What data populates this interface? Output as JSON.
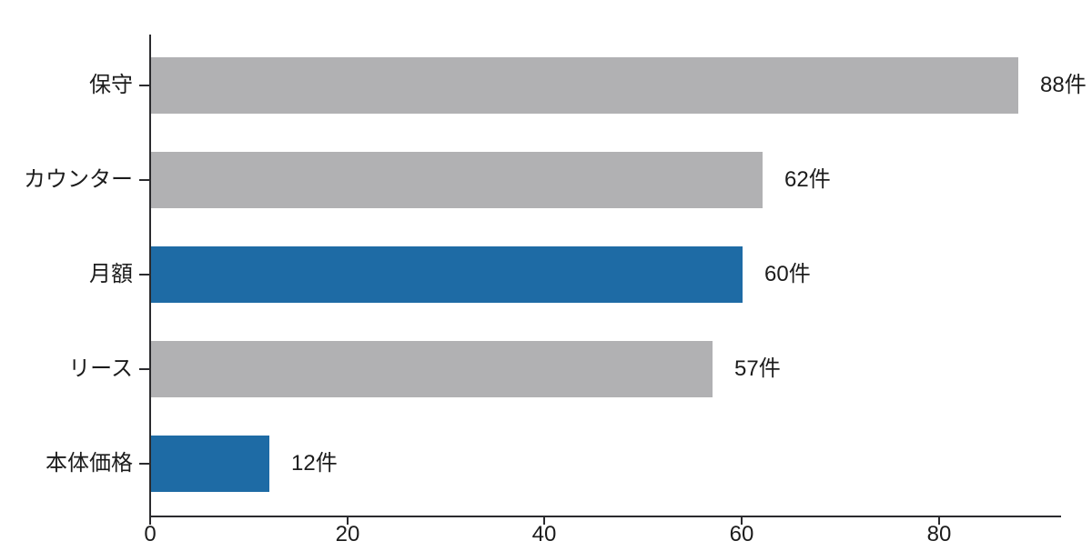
{
  "chart_data": {
    "type": "bar",
    "orientation": "horizontal",
    "title": "",
    "xlabel": "",
    "ylabel": "",
    "categories": [
      "保守",
      "カウンター",
      "月額",
      "リース",
      "本体価格"
    ],
    "values": [
      88,
      62,
      60,
      57,
      12
    ],
    "value_labels": [
      "88件",
      "62件",
      "60件",
      "57件",
      "12件"
    ],
    "unit_suffix": "件",
    "bar_colors": [
      "#b1b1b3",
      "#b1b1b3",
      "#1e6ba5",
      "#b1b1b3",
      "#1e6ba5"
    ],
    "xlim": [
      0,
      92.5
    ],
    "xticks": [
      0,
      20,
      40,
      60,
      80
    ],
    "xtick_labels": [
      "0",
      "20",
      "40",
      "60",
      "80"
    ],
    "grid": false,
    "legend": null
  },
  "colors": {
    "bar_blue": "#1e6ba5",
    "bar_gray": "#b1b1b3",
    "axis": "#2b2b2e",
    "text": "#1c1c1c",
    "background": "#ffffff"
  }
}
